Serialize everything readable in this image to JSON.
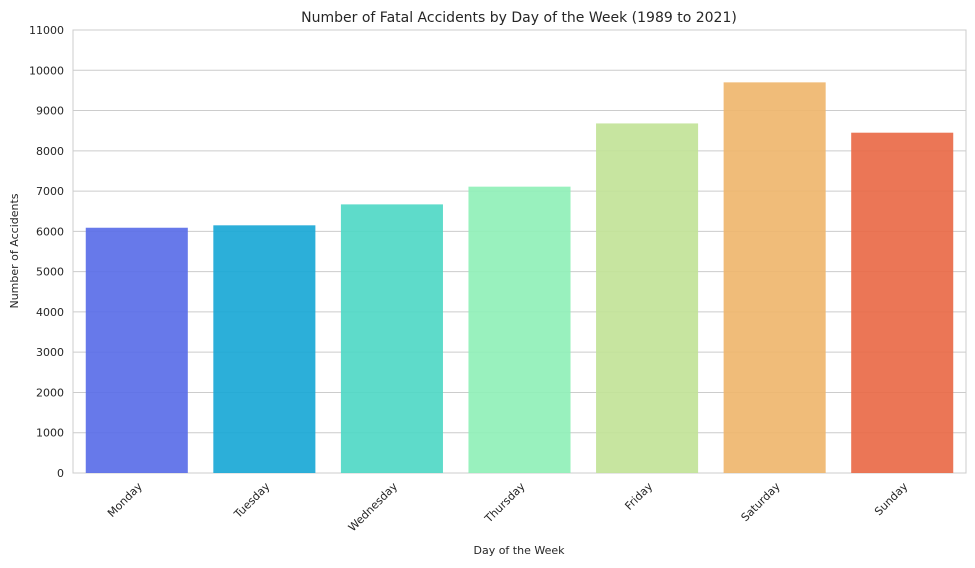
{
  "chart_data": {
    "type": "bar",
    "title": "Number of Fatal Accidents by Day of the Week (1989 to 2021)",
    "xlabel": "Day of the Week",
    "ylabel": "Number of Accidents",
    "categories": [
      "Monday",
      "Tuesday",
      "Wednesday",
      "Thursday",
      "Friday",
      "Saturday",
      "Sunday"
    ],
    "values": [
      6090,
      6150,
      6670,
      7110,
      8680,
      9700,
      8450
    ],
    "colors": [
      "#5a6ee8",
      "#1aa8d6",
      "#50d8c6",
      "#90f0b8",
      "#c2e398",
      "#efb66e",
      "#e96a48"
    ],
    "ylim": [
      0,
      11000
    ],
    "yticks": [
      0,
      1000,
      2000,
      3000,
      4000,
      5000,
      6000,
      7000,
      8000,
      9000,
      10000,
      11000
    ],
    "grid": "horizontal",
    "legend": "none"
  }
}
